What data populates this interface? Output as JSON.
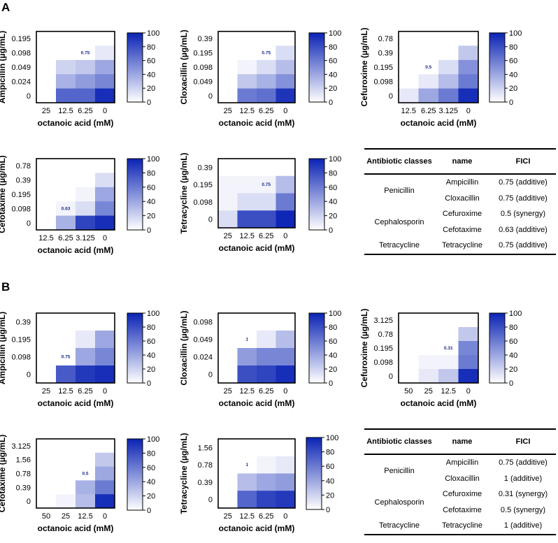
{
  "panels": [
    {
      "label": "A",
      "chart_data": [
        {
          "type": "heatmap",
          "ylabel": "Ampicillin (µg/mL)",
          "xlabel": "octanoic acid (mM)",
          "x": [
            "25",
            "12.5",
            "6.25",
            "0"
          ],
          "y": [
            "0.195",
            "0.098",
            "0.049",
            "0.024",
            "0"
          ],
          "values": [
            [
              null,
              null,
              null,
              null
            ],
            [
              null,
              null,
              null,
              10
            ],
            [
              null,
              20,
              25,
              40
            ],
            [
              null,
              35,
              45,
              55
            ],
            [
              null,
              70,
              70,
              95
            ]
          ],
          "annotation": {
            "text": "0.75",
            "row": 1,
            "col": 2
          },
          "colorbar": {
            "min": 0,
            "max": 100,
            "ticks": [
              0,
              20,
              40,
              60,
              80,
              100
            ]
          }
        },
        {
          "type": "heatmap",
          "ylabel": "Cloxacillin (µg/mL)",
          "xlabel": "octanoic acid (mM)",
          "x": [
            "25",
            "12.5",
            "6.25",
            "0"
          ],
          "y": [
            "0.39",
            "0.195",
            "0.098",
            "0.049",
            "0"
          ],
          "values": [
            [
              null,
              null,
              null,
              null
            ],
            [
              null,
              null,
              null,
              15
            ],
            [
              null,
              5,
              15,
              30
            ],
            [
              null,
              25,
              35,
              50
            ],
            [
              null,
              60,
              65,
              92
            ]
          ],
          "annotation": {
            "text": "0.75",
            "row": 1,
            "col": 2
          },
          "colorbar": {
            "min": 0,
            "max": 100,
            "ticks": [
              0,
              20,
              40,
              60,
              80,
              100
            ]
          }
        },
        {
          "type": "heatmap",
          "ylabel": "Cefuroxime (µg/mL)",
          "xlabel": "octanoic acid (mM)",
          "x": [
            "12.5",
            "6.25",
            "3.125",
            "0"
          ],
          "y": [
            "0.78",
            "0.39",
            "0.195",
            "0.098",
            "0"
          ],
          "values": [
            [
              null,
              null,
              null,
              null
            ],
            [
              null,
              null,
              null,
              25
            ],
            [
              null,
              null,
              15,
              50
            ],
            [
              null,
              10,
              30,
              60
            ],
            [
              10,
              40,
              60,
              95
            ]
          ],
          "annotation": {
            "text": "0.5",
            "row": 2,
            "col": 1
          },
          "colorbar": {
            "min": 0,
            "max": 100,
            "ticks": [
              0,
              20,
              40,
              60,
              80,
              100
            ]
          }
        },
        {
          "type": "heatmap",
          "ylabel": "Cefotaxime (µg/mL)",
          "xlabel": "octanoic acid (mM)",
          "x": [
            "12.5",
            "6.25",
            "3.125",
            "0"
          ],
          "y": [
            "0.78",
            "0.39",
            "0.195",
            "0.098",
            "0"
          ],
          "values": [
            [
              null,
              null,
              null,
              null
            ],
            [
              null,
              null,
              null,
              15
            ],
            [
              null,
              null,
              5,
              40
            ],
            [
              null,
              5,
              15,
              55
            ],
            [
              null,
              35,
              85,
              95
            ]
          ],
          "annotation": {
            "text": "0.63",
            "row": 3,
            "col": 1
          },
          "colorbar": {
            "min": 0,
            "max": 100,
            "ticks": [
              0,
              20,
              40,
              60,
              80,
              100
            ]
          }
        },
        {
          "type": "heatmap",
          "ylabel": "Tetracycline (µg/mL)",
          "xlabel": "octanoic acid (mM)",
          "x": [
            "25",
            "12.5",
            "6.25",
            "0"
          ],
          "y": [
            "0.39",
            "0.195",
            "0.098",
            "0"
          ],
          "values": [
            [
              null,
              null,
              null,
              null
            ],
            [
              5,
              5,
              5,
              30
            ],
            [
              5,
              15,
              15,
              60
            ],
            [
              15,
              80,
              80,
              98
            ]
          ],
          "annotation": {
            "text": "0.75",
            "row": 1,
            "col": 2
          },
          "colorbar": {
            "min": 0,
            "max": 100,
            "ticks": [
              0,
              20,
              40,
              60,
              80,
              100
            ]
          }
        }
      ],
      "table": {
        "headers": [
          "Antibiotic classes",
          "name",
          "FICI"
        ],
        "rows": [
          {
            "cls": "Penicillin",
            "name": "Ampicillin",
            "fici": "0.75 (additive)"
          },
          {
            "cls": "",
            "name": "Cloxacillin",
            "fici": "0.75 (additive)"
          },
          {
            "cls": "Cephalosporin",
            "name": "Cefuroxime",
            "fici": "0.5 (synergy)"
          },
          {
            "cls": "",
            "name": "Cefotaxime",
            "fici": "0.63 (additive)"
          },
          {
            "cls": "Tetracycline",
            "name": "Tetracycline",
            "fici": "0.75 (additive)"
          }
        ]
      }
    },
    {
      "label": "B",
      "chart_data": [
        {
          "type": "heatmap",
          "ylabel": "Ampicillin (µg/mL)",
          "xlabel": "octanoic acid (mM)",
          "x": [
            "25",
            "12.5",
            "6.25",
            "0"
          ],
          "y": [
            "0.39",
            "0.195",
            "0.098",
            "0"
          ],
          "values": [
            [
              null,
              null,
              null,
              null
            ],
            [
              null,
              null,
              10,
              40
            ],
            [
              null,
              null,
              40,
              55
            ],
            [
              null,
              75,
              90,
              95
            ]
          ],
          "annotation": {
            "text": "0.75",
            "row": 2,
            "col": 1
          },
          "colorbar": {
            "min": 0,
            "max": 100,
            "ticks": [
              0,
              20,
              40,
              60,
              80,
              100
            ]
          }
        },
        {
          "type": "heatmap",
          "ylabel": "Cloxacillin (µg/mL)",
          "xlabel": "octanoic acid (mM)",
          "x": [
            "25",
            "12.5",
            "6.25",
            "0"
          ],
          "y": [
            "0.098",
            "0.049",
            "0.024",
            "0"
          ],
          "values": [
            [
              null,
              null,
              null,
              null
            ],
            [
              null,
              null,
              10,
              30
            ],
            [
              null,
              45,
              55,
              55
            ],
            [
              null,
              80,
              85,
              95
            ]
          ],
          "annotation": {
            "text": "1",
            "row": 1,
            "col": 1
          },
          "colorbar": {
            "min": 0,
            "max": 100,
            "ticks": [
              0,
              20,
              40,
              60,
              80,
              100
            ]
          }
        },
        {
          "type": "heatmap",
          "ylabel": "Cefuroxime (µg/mL)",
          "xlabel": "octanoic acid (mM)",
          "x": [
            "50",
            "25",
            "12.5",
            "0"
          ],
          "y": [
            "3.125",
            "0.78",
            "0.195",
            "0.098",
            "0"
          ],
          "values": [
            [
              null,
              null,
              null,
              null
            ],
            [
              null,
              null,
              null,
              25
            ],
            [
              null,
              null,
              null,
              55
            ],
            [
              null,
              5,
              5,
              60
            ],
            [
              null,
              10,
              25,
              95
            ]
          ],
          "annotation": {
            "text": "0.31",
            "row": 2,
            "col": 2
          },
          "colorbar": {
            "min": 0,
            "max": 100,
            "ticks": [
              0,
              20,
              40,
              60,
              80,
              100
            ]
          }
        },
        {
          "type": "heatmap",
          "ylabel": "Cefotaxime (µg/mL)",
          "xlabel": "octanoic acid (mM)",
          "x": [
            "50",
            "25",
            "12.5",
            "0"
          ],
          "y": [
            "3.125",
            "1.56",
            "0.78",
            "0.39",
            "0"
          ],
          "values": [
            [
              null,
              null,
              null,
              null
            ],
            [
              null,
              null,
              null,
              25
            ],
            [
              null,
              null,
              null,
              40
            ],
            [
              null,
              null,
              35,
              60
            ],
            [
              null,
              5,
              30,
              95
            ]
          ],
          "annotation": {
            "text": "0.5",
            "row": 2,
            "col": 2
          },
          "colorbar": {
            "min": 0,
            "max": 100,
            "ticks": [
              0,
              20,
              40,
              60,
              80,
              100
            ]
          }
        },
        {
          "type": "heatmap",
          "ylabel": "Tetracycline (µg/mL)",
          "xlabel": "octanoic acid (mM)",
          "x": [
            "25",
            "12.5",
            "6.25",
            "0"
          ],
          "y": [
            "1.56",
            "0.78",
            "0.39",
            "0"
          ],
          "values": [
            [
              null,
              null,
              null,
              null
            ],
            [
              null,
              null,
              5,
              10
            ],
            [
              null,
              30,
              40,
              45
            ],
            [
              null,
              70,
              85,
              90
            ]
          ],
          "annotation": {
            "text": "1",
            "row": 1,
            "col": 1
          },
          "colorbar": {
            "min": 0,
            "max": 100,
            "ticks": [
              0,
              20,
              40,
              60,
              80,
              100
            ]
          }
        }
      ],
      "table": {
        "headers": [
          "Antibiotic classes",
          "name",
          "FICI"
        ],
        "rows": [
          {
            "cls": "Penicillin",
            "name": "Ampicillin",
            "fici": "0.75 (additive)"
          },
          {
            "cls": "",
            "name": "Cloxacillin",
            "fici": "1 (additive)"
          },
          {
            "cls": "Cephalosporin",
            "name": "Cefuroxime",
            "fici": "0.31 (synergy)"
          },
          {
            "cls": "",
            "name": "Cefotaxime",
            "fici": "0.5 (synergy)"
          },
          {
            "cls": "Tetracycline",
            "name": "Tetracycline",
            "fici": "1 (additive)"
          }
        ]
      }
    }
  ],
  "colors": {
    "low": "#ffffff",
    "high": "#0a23b4",
    "annotation": "#1a2a8a"
  }
}
